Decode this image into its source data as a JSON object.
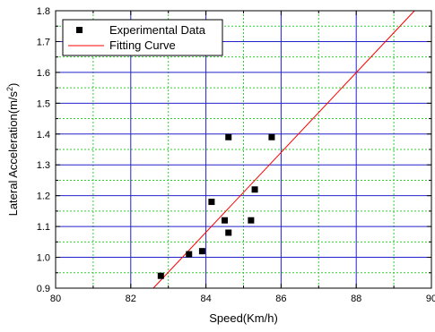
{
  "chart_data": {
    "type": "scatter",
    "title": "",
    "xlabel": "Speed(Km/h)",
    "ylabel_main": "Lateral Acceleration(m/s",
    "ylabel_sup": "2",
    "ylabel_tail": ")",
    "xlim": [
      80,
      90
    ],
    "ylim": [
      0.9,
      1.8
    ],
    "x_ticks": [
      80,
      82,
      84,
      86,
      88,
      90
    ],
    "x_tick_labels": [
      "80",
      "82",
      "84",
      "86",
      "88",
      "90"
    ],
    "x_minor_ticks": [
      81,
      83,
      85,
      87,
      89
    ],
    "y_ticks": [
      0.9,
      1.0,
      1.1,
      1.2,
      1.3,
      1.4,
      1.5,
      1.6,
      1.7,
      1.8
    ],
    "y_tick_labels": [
      "0.9",
      "1.0",
      "1.1",
      "1.2",
      "1.3",
      "1.4",
      "1.5",
      "1.6",
      "1.7",
      "1.8"
    ],
    "y_minor_ticks": [
      0.95,
      1.05,
      1.15,
      1.25,
      1.35,
      1.45,
      1.55,
      1.65,
      1.75
    ],
    "grid": true,
    "legend_position": "top-left",
    "series": [
      {
        "name": "Experimental Data",
        "kind": "scatter",
        "marker": "square",
        "color": "#000000",
        "points": [
          {
            "x": 82.8,
            "y": 0.94
          },
          {
            "x": 83.55,
            "y": 1.01
          },
          {
            "x": 83.9,
            "y": 1.02
          },
          {
            "x": 84.15,
            "y": 1.18
          },
          {
            "x": 84.5,
            "y": 1.12
          },
          {
            "x": 84.6,
            "y": 1.08
          },
          {
            "x": 84.6,
            "y": 1.39
          },
          {
            "x": 85.2,
            "y": 1.12
          },
          {
            "x": 85.3,
            "y": 1.22
          },
          {
            "x": 85.75,
            "y": 1.39
          }
        ]
      },
      {
        "name": "Fitting Curve",
        "kind": "line",
        "color": "#ff0000",
        "points": [
          {
            "x": 82.6,
            "y": 0.9
          },
          {
            "x": 89.55,
            "y": 1.8
          }
        ]
      }
    ],
    "colors": {
      "major_grid": "#2222cc",
      "minor_grid": "#33cc33",
      "axis": "#000000"
    }
  }
}
